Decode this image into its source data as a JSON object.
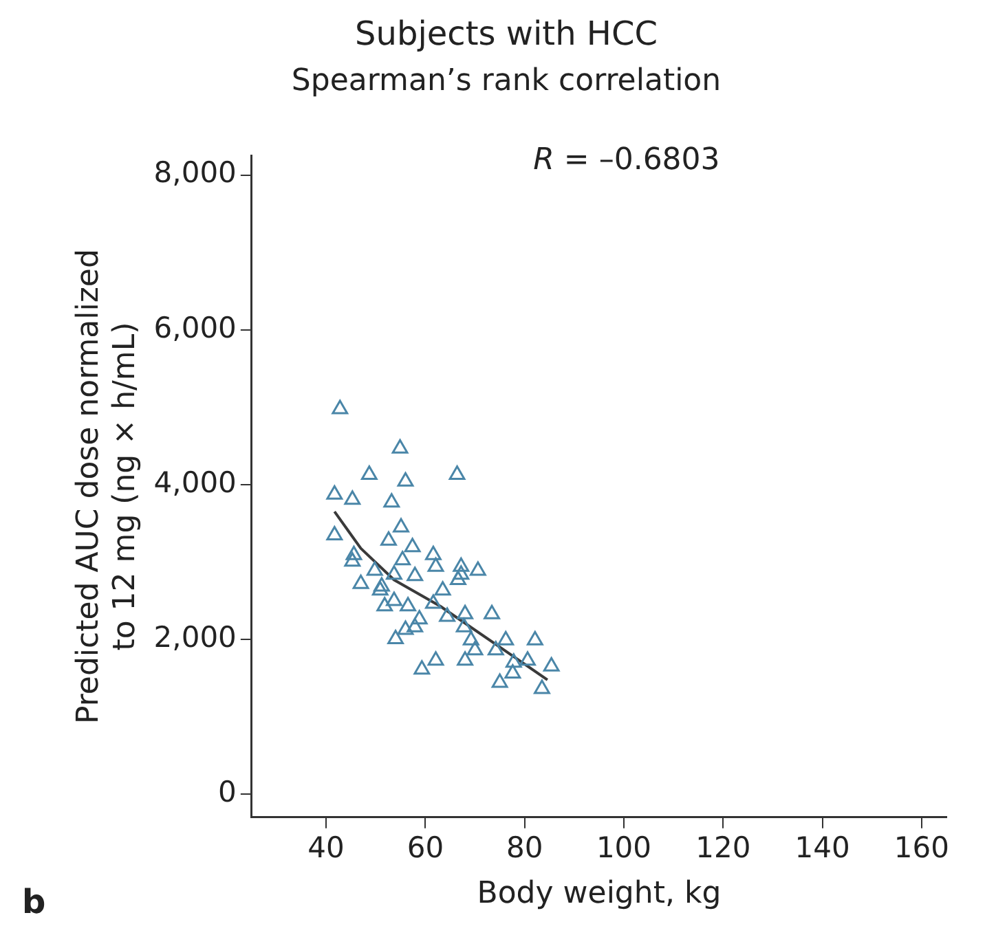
{
  "chart_data": {
    "type": "scatter",
    "title": "Subjects with HCC",
    "subtitle": "Spearman’s rank correlation",
    "xlabel": "Body weight, kg",
    "ylabel": "Predicted AUC dose normalized to 12 mg (ng × h/mL)",
    "annotations": [
      "R = –0.6803",
      "b"
    ],
    "xlim": [
      25,
      165
    ],
    "xticks": [
      40,
      60,
      80,
      100,
      120,
      140,
      160
    ],
    "ylim": [
      -300,
      8250
    ],
    "yticks": [
      {
        "value": 0,
        "label": "0"
      },
      {
        "value": 2000,
        "label": "2,000"
      },
      {
        "value": 4000,
        "label": "4,000"
      },
      {
        "value": 6000,
        "label": "6,000"
      },
      {
        "value": 8000,
        "label": "8,000"
      }
    ],
    "grid": false,
    "legend": false,
    "marker": "triangle",
    "series": [
      {
        "color": "#4a86a8",
        "x": [
          42.8,
          54.9,
          48.7,
          56.0,
          66.4,
          41.7,
          45.3,
          53.2,
          41.7,
          55.1,
          52.6,
          57.4,
          45.6,
          45.3,
          61.6,
          62.1,
          49.8,
          55.4,
          67.2,
          67.2,
          70.6,
          66.6,
          47.0,
          57.9,
          53.7,
          51.2,
          50.9,
          63.5,
          53.7,
          51.8,
          56.5,
          61.6,
          64.4,
          68.0,
          73.4,
          67.8,
          58.8,
          57.9,
          56.0,
          54.0,
          69.2,
          76.2,
          82.1,
          70.0,
          74.2,
          62.1,
          59.3,
          68.0,
          77.8,
          80.6,
          85.4,
          77.6,
          75.0,
          83.5
        ],
        "values": [
          4975,
          4466,
          4126,
          4041,
          4126,
          3871,
          3804,
          3770,
          3345,
          3447,
          3277,
          3192,
          3090,
          3005,
          3090,
          2938,
          2887,
          3022,
          2938,
          2836,
          2887,
          2768,
          2717,
          2819,
          2836,
          2683,
          2632,
          2632,
          2496,
          2428,
          2428,
          2462,
          2292,
          2326,
          2326,
          2157,
          2258,
          2157,
          2123,
          2004,
          1987,
          1987,
          1987,
          1860,
          1860,
          1725,
          1610,
          1725,
          1700,
          1725,
          1650,
          1560,
          1440,
          1360
        ]
      },
      {
        "type": "line",
        "color": "#3a3a3a",
        "marker": "none",
        "line_style": "solid",
        "x": [
          41.7,
          47.0,
          53.7,
          63.0,
          84.6
        ],
        "values": [
          3650,
          3175,
          2768,
          2428,
          1477
        ]
      }
    ]
  }
}
